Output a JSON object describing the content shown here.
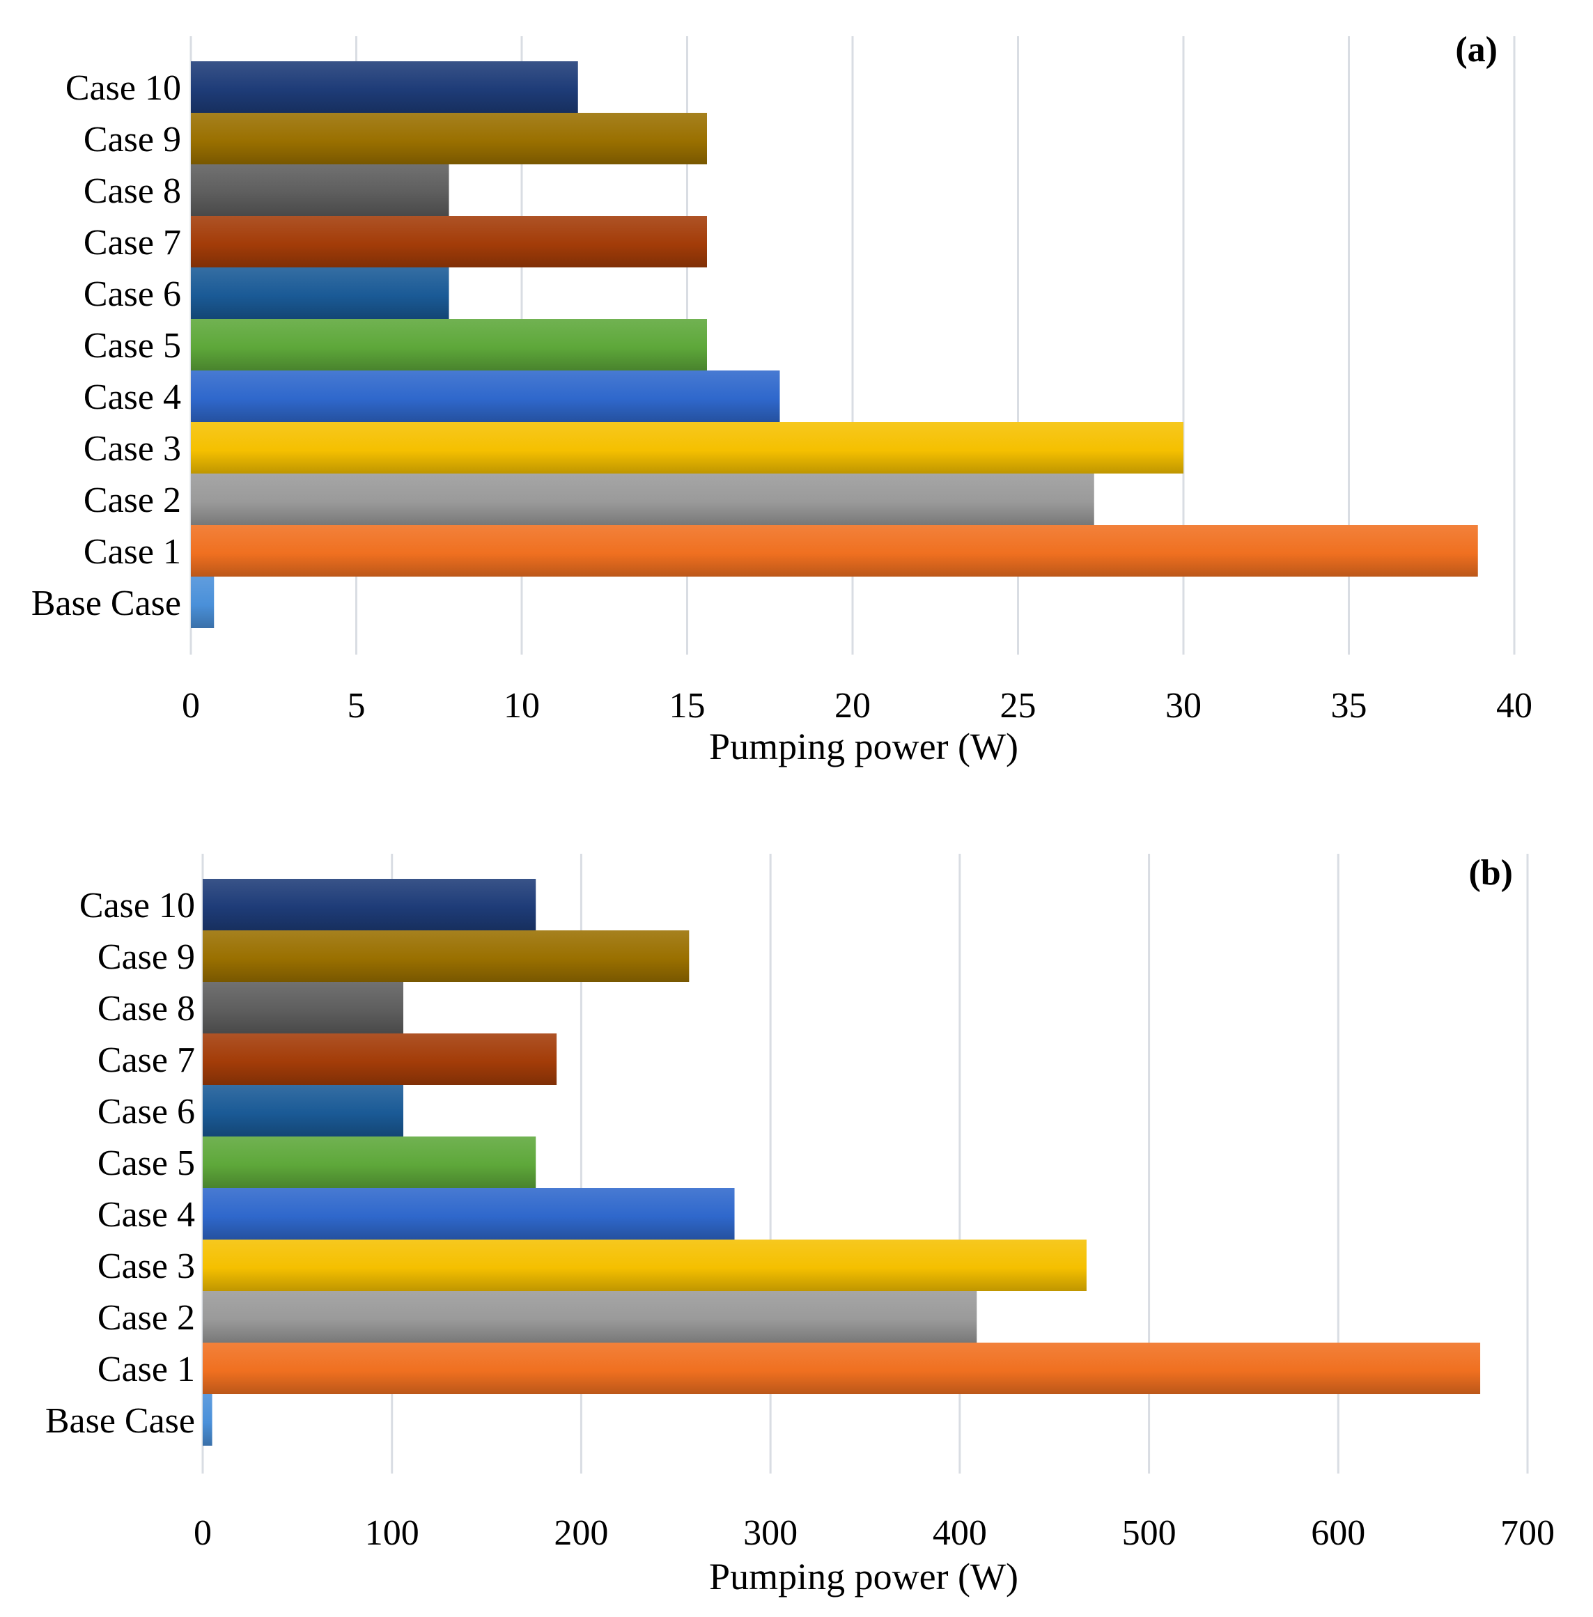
{
  "chart_data": [
    {
      "type": "bar",
      "orientation": "horizontal",
      "panel_label": "(a)",
      "categories": [
        "Base Case",
        "Case 1",
        "Case 2",
        "Case 3",
        "Case 4",
        "Case 5",
        "Case 6",
        "Case 7",
        "Case 8",
        "Case 9",
        "Case 10"
      ],
      "values": [
        0.7,
        38.9,
        27.3,
        30.0,
        17.8,
        15.6,
        7.8,
        15.6,
        7.8,
        15.6,
        11.7
      ],
      "colors": [
        "#4a90d9",
        "#f07020",
        "#9a9a9a",
        "#f5c000",
        "#2f68cc",
        "#5ea83a",
        "#1a5a96",
        "#a33c08",
        "#5e5e5e",
        "#9a7000",
        "#1e3c78"
      ],
      "xlabel": "Pumping power (W)",
      "ylabel": "",
      "xlim": [
        0,
        40
      ],
      "xticks": [
        "0",
        "5",
        "10",
        "15",
        "20",
        "25",
        "30",
        "35",
        "40"
      ],
      "xtick_values": [
        0,
        5,
        10,
        15,
        20,
        25,
        30,
        35,
        40
      ],
      "grid": true
    },
    {
      "type": "bar",
      "orientation": "horizontal",
      "panel_label": "(b)",
      "categories": [
        "Base Case",
        "Case 1",
        "Case 2",
        "Case 3",
        "Case 4",
        "Case 5",
        "Case 6",
        "Case 7",
        "Case 8",
        "Case 9",
        "Case 10"
      ],
      "values": [
        5,
        675,
        409,
        467,
        281,
        176,
        106,
        187,
        106,
        257,
        176
      ],
      "colors": [
        "#4a90d9",
        "#f07020",
        "#9a9a9a",
        "#f5c000",
        "#2f68cc",
        "#5ea83a",
        "#1a5a96",
        "#a33c08",
        "#5e5e5e",
        "#9a7000",
        "#1e3c78"
      ],
      "xlabel": "Pumping power (W)",
      "ylabel": "",
      "xlim": [
        0,
        700
      ],
      "xticks": [
        "0",
        "100",
        "200",
        "300",
        "400",
        "500",
        "600",
        "700"
      ],
      "xtick_values": [
        0,
        100,
        200,
        300,
        400,
        500,
        600,
        700
      ],
      "grid": true
    }
  ]
}
